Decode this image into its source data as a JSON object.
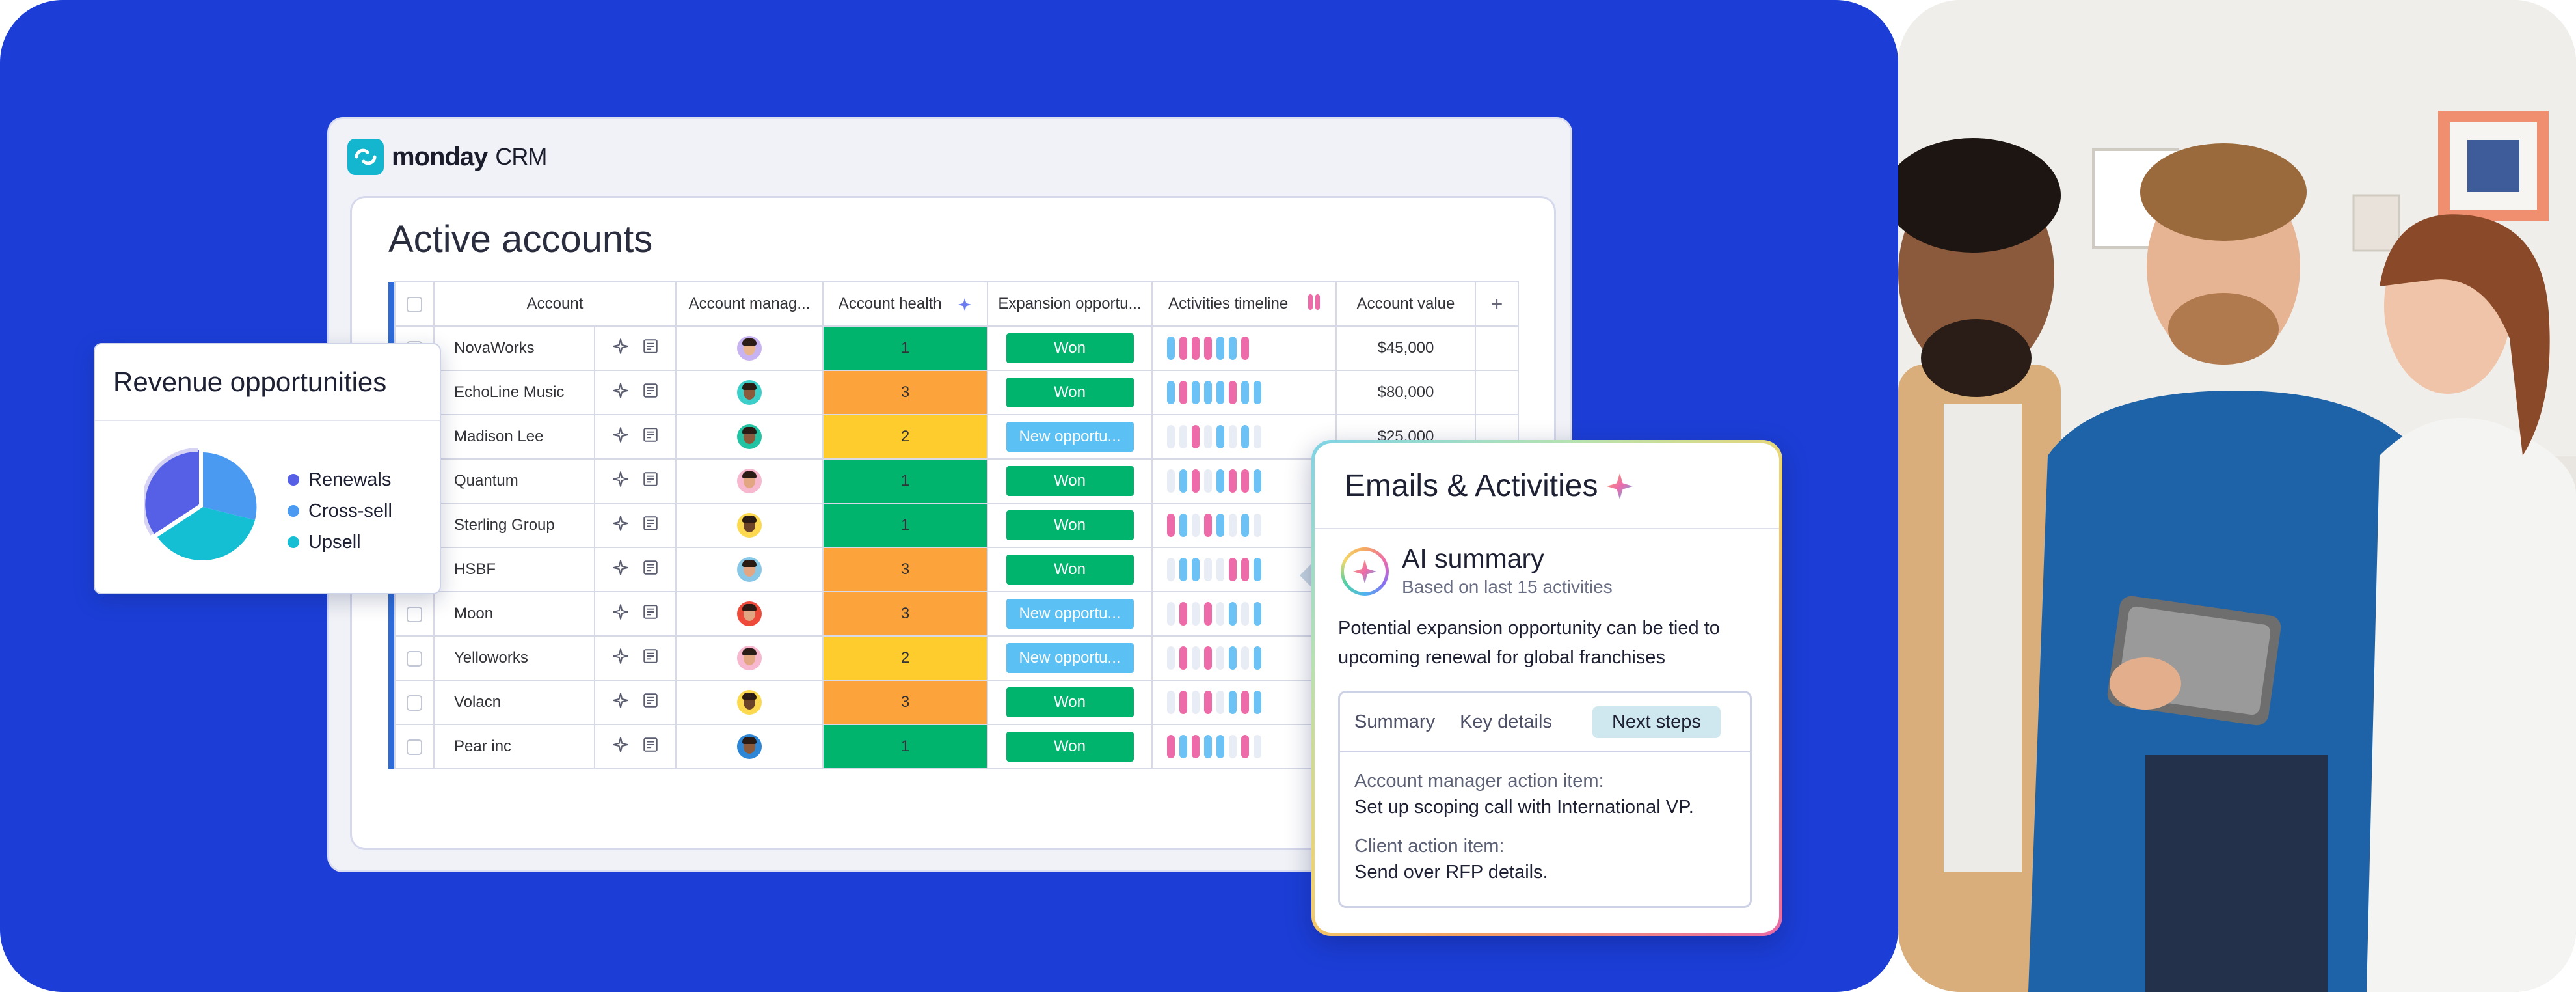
{
  "brand": {
    "name": "monday",
    "suffix": "CRM",
    "colors": {
      "logo": "#13b5cf",
      "background": "#1c3ed6"
    }
  },
  "board": {
    "title": "Active accounts",
    "columns": [
      "Account",
      "Account manag...",
      "Account health",
      "Expansion opportu...",
      "Activities timeline",
      "Account value"
    ],
    "add_column_icon": "plus-icon",
    "rows": [
      {
        "account": "NovaWorks",
        "health": "1",
        "health_color": "#00b46e",
        "expansion": "Won",
        "expansion_color": "#00b46e",
        "value": "$45,000",
        "avatar_bg": "#c8b3f2",
        "skin": "#e8b48e",
        "timeline": [
          "b",
          "p",
          "p",
          "p",
          "b",
          "b",
          "p"
        ]
      },
      {
        "account": "EchoLine Music",
        "health": "3",
        "health_color": "#fca33b",
        "expansion": "Won",
        "expansion_color": "#00b46e",
        "value": "$80,000",
        "avatar_bg": "#3ad0c9",
        "skin": "#8a5a3a",
        "timeline": [
          "b",
          "p",
          "b",
          "b",
          "b",
          "p",
          "b",
          "b"
        ]
      },
      {
        "account": "Madison Lee",
        "health": "2",
        "health_color": "#ffcc2e",
        "expansion": "New opportu...",
        "expansion_color": "#5bc1f5",
        "value": "$25,000",
        "avatar_bg": "#22c3a3",
        "skin": "#8a5a3a",
        "timeline": [
          "f",
          "f",
          "p",
          "f",
          "b",
          "f",
          "b",
          "f"
        ]
      },
      {
        "account": "Quantum",
        "health": "1",
        "health_color": "#00b46e",
        "expansion": "Won",
        "expansion_color": "#00b46e",
        "value": "",
        "avatar_bg": "#f7b7cf",
        "skin": "#e3a683",
        "timeline": [
          "f",
          "b",
          "p",
          "f",
          "b",
          "p",
          "p",
          "b"
        ]
      },
      {
        "account": "Sterling Group",
        "health": "1",
        "health_color": "#00b46e",
        "expansion": "Won",
        "expansion_color": "#00b46e",
        "value": "",
        "avatar_bg": "#fcd94e",
        "skin": "#6b4328",
        "timeline": [
          "p",
          "b",
          "f",
          "p",
          "b",
          "f",
          "b",
          "f"
        ]
      },
      {
        "account": "HSBF",
        "health": "3",
        "health_color": "#fca33b",
        "expansion": "Won",
        "expansion_color": "#00b46e",
        "value": "",
        "avatar_bg": "#88c8e6",
        "skin": "#e3a683",
        "timeline": [
          "f",
          "b",
          "b",
          "f",
          "f",
          "p",
          "p",
          "b"
        ]
      },
      {
        "account": "Moon",
        "health": "3",
        "health_color": "#fca33b",
        "expansion": "New opportu...",
        "expansion_color": "#5bc1f5",
        "value": "",
        "avatar_bg": "#ee4a3a",
        "skin": "#e3a683",
        "timeline": [
          "f",
          "p",
          "f",
          "p",
          "f",
          "b",
          "f",
          "b"
        ]
      },
      {
        "account": "Yelloworks",
        "health": "2",
        "health_color": "#ffcc2e",
        "expansion": "New opportu...",
        "expansion_color": "#5bc1f5",
        "value": "",
        "avatar_bg": "#f7b7cf",
        "skin": "#e3a683",
        "timeline": [
          "f",
          "p",
          "f",
          "p",
          "f",
          "b",
          "f",
          "b"
        ]
      },
      {
        "account": "Volacn",
        "health": "3",
        "health_color": "#fca33b",
        "expansion": "Won",
        "expansion_color": "#00b46e",
        "value": "",
        "avatar_bg": "#fcd94e",
        "skin": "#6b4328",
        "timeline": [
          "f",
          "p",
          "f",
          "p",
          "f",
          "b",
          "p",
          "b"
        ]
      },
      {
        "account": "Pear inc",
        "health": "1",
        "health_color": "#00b46e",
        "expansion": "Won",
        "expansion_color": "#00b46e",
        "value": "",
        "avatar_bg": "#2e86d6",
        "skin": "#8a5a3a",
        "timeline": [
          "p",
          "b",
          "p",
          "b",
          "b",
          "f",
          "p",
          "f"
        ]
      }
    ]
  },
  "revenue": {
    "title": "Revenue opportunities",
    "legend": [
      {
        "label": "Renewals",
        "color": "#5560e6"
      },
      {
        "label": "Cross-sell",
        "color": "#4a9af2"
      },
      {
        "label": "Upsell",
        "color": "#14bfd4"
      }
    ]
  },
  "ai": {
    "title": "Emails & Activities",
    "summary_title": "AI summary",
    "summary_sub": "Based on last 15 activities",
    "body": "Potential expansion opportunity can be tied to upcoming renewal for global franchises",
    "tabs": [
      "Summary",
      "Key details",
      "Next steps"
    ],
    "active_tab": "Next steps",
    "items": [
      {
        "label": "Account manager action item:",
        "text": "Set up scoping call with International VP."
      },
      {
        "label": "Client action item:",
        "text": "Send over RFP details."
      }
    ]
  }
}
